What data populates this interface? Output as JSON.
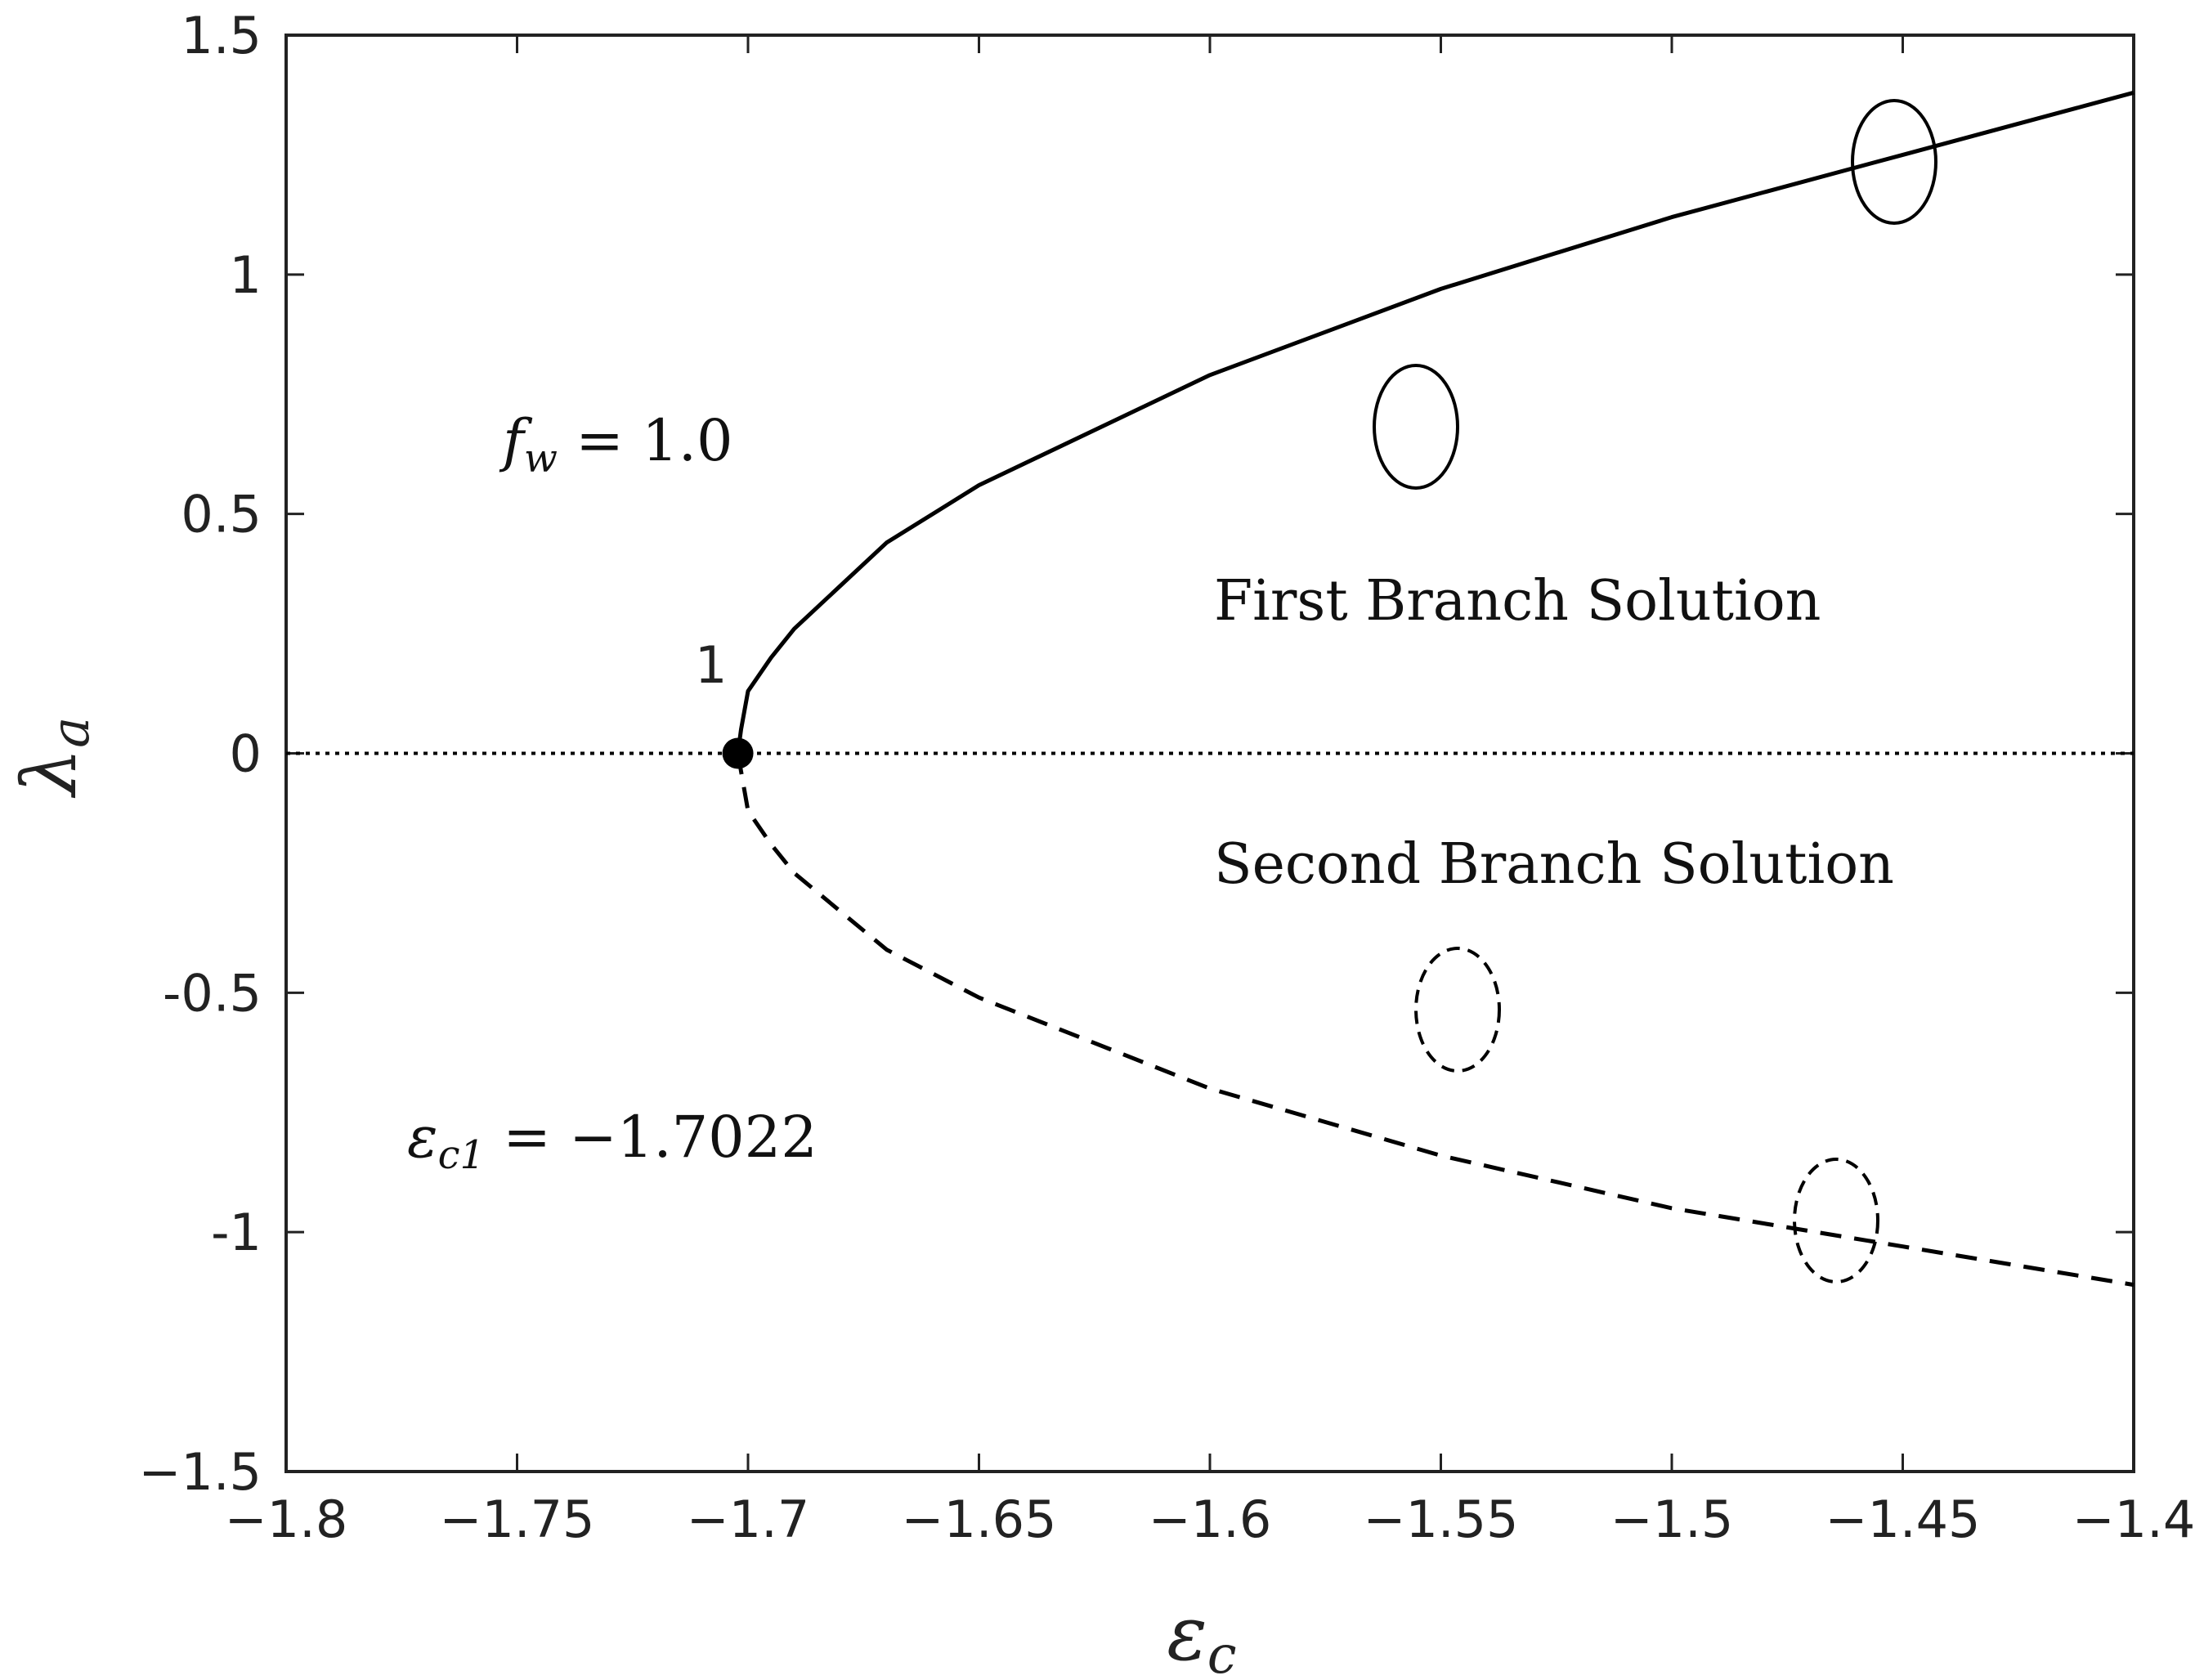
{
  "chart_data": {
    "type": "line",
    "xlabel_symbol": "ε",
    "xlabel_sub": "c",
    "ylabel_symbol": "λ",
    "ylabel_sub": "a",
    "xlim": [
      -1.8,
      -1.4
    ],
    "ylim": [
      -1.5,
      1.5
    ],
    "x_ticks": [
      -1.8,
      -1.75,
      -1.7,
      -1.65,
      -1.6,
      -1.55,
      -1.5,
      -1.45,
      -1.4
    ],
    "x_tick_labels": [
      "−1.8",
      "−1.75",
      "−1.7",
      "−1.65",
      "−1.6",
      "−1.55",
      "−1.5",
      "−1.45",
      "−1.4"
    ],
    "y_ticks": [
      1.5,
      1,
      0.5,
      0,
      -0.5,
      -1,
      -1.5
    ],
    "y_tick_labels": [
      "1.5",
      "1",
      "0.5",
      "0",
      "-0.5",
      "-1",
      "−1.5"
    ],
    "grid": false,
    "series": [
      {
        "style": "solid",
        "x": [
          -1.7022,
          -1.7015,
          -1.7,
          -1.695,
          -1.69,
          -1.68,
          -1.67,
          -1.65,
          -1.6,
          -1.55,
          -1.5,
          -1.45,
          -1.4
        ],
        "y": [
          0.0,
          0.05,
          0.13,
          0.2,
          0.26,
          0.35,
          0.44,
          0.56,
          0.79,
          0.97,
          1.12,
          1.25,
          1.38
        ]
      },
      {
        "style": "dashed",
        "x": [
          -1.7022,
          -1.7,
          -1.695,
          -1.69,
          -1.68,
          -1.67,
          -1.65,
          -1.6,
          -1.55,
          -1.5,
          -1.45,
          -1.4
        ],
        "y": [
          0.0,
          -0.12,
          -0.19,
          -0.25,
          -0.33,
          -0.41,
          -0.51,
          -0.7,
          -0.84,
          -0.95,
          -1.03,
          -1.11
        ]
      },
      {
        "style": "dotted",
        "x": [
          -1.8,
          -1.4
        ],
        "y": [
          0,
          0
        ]
      }
    ],
    "critical_point": {
      "x": -1.7022,
      "y": 0,
      "label": "1"
    },
    "annotations": {
      "first_branch": "First Branch Solution",
      "second_branch": "Second Branch Solution",
      "fw_symbol": "f",
      "fw_sub": "w",
      "fw_value": " = 1.0",
      "ec_symbol": "ε",
      "ec_sub": "c1",
      "ec_value": " = −1.7022"
    }
  }
}
